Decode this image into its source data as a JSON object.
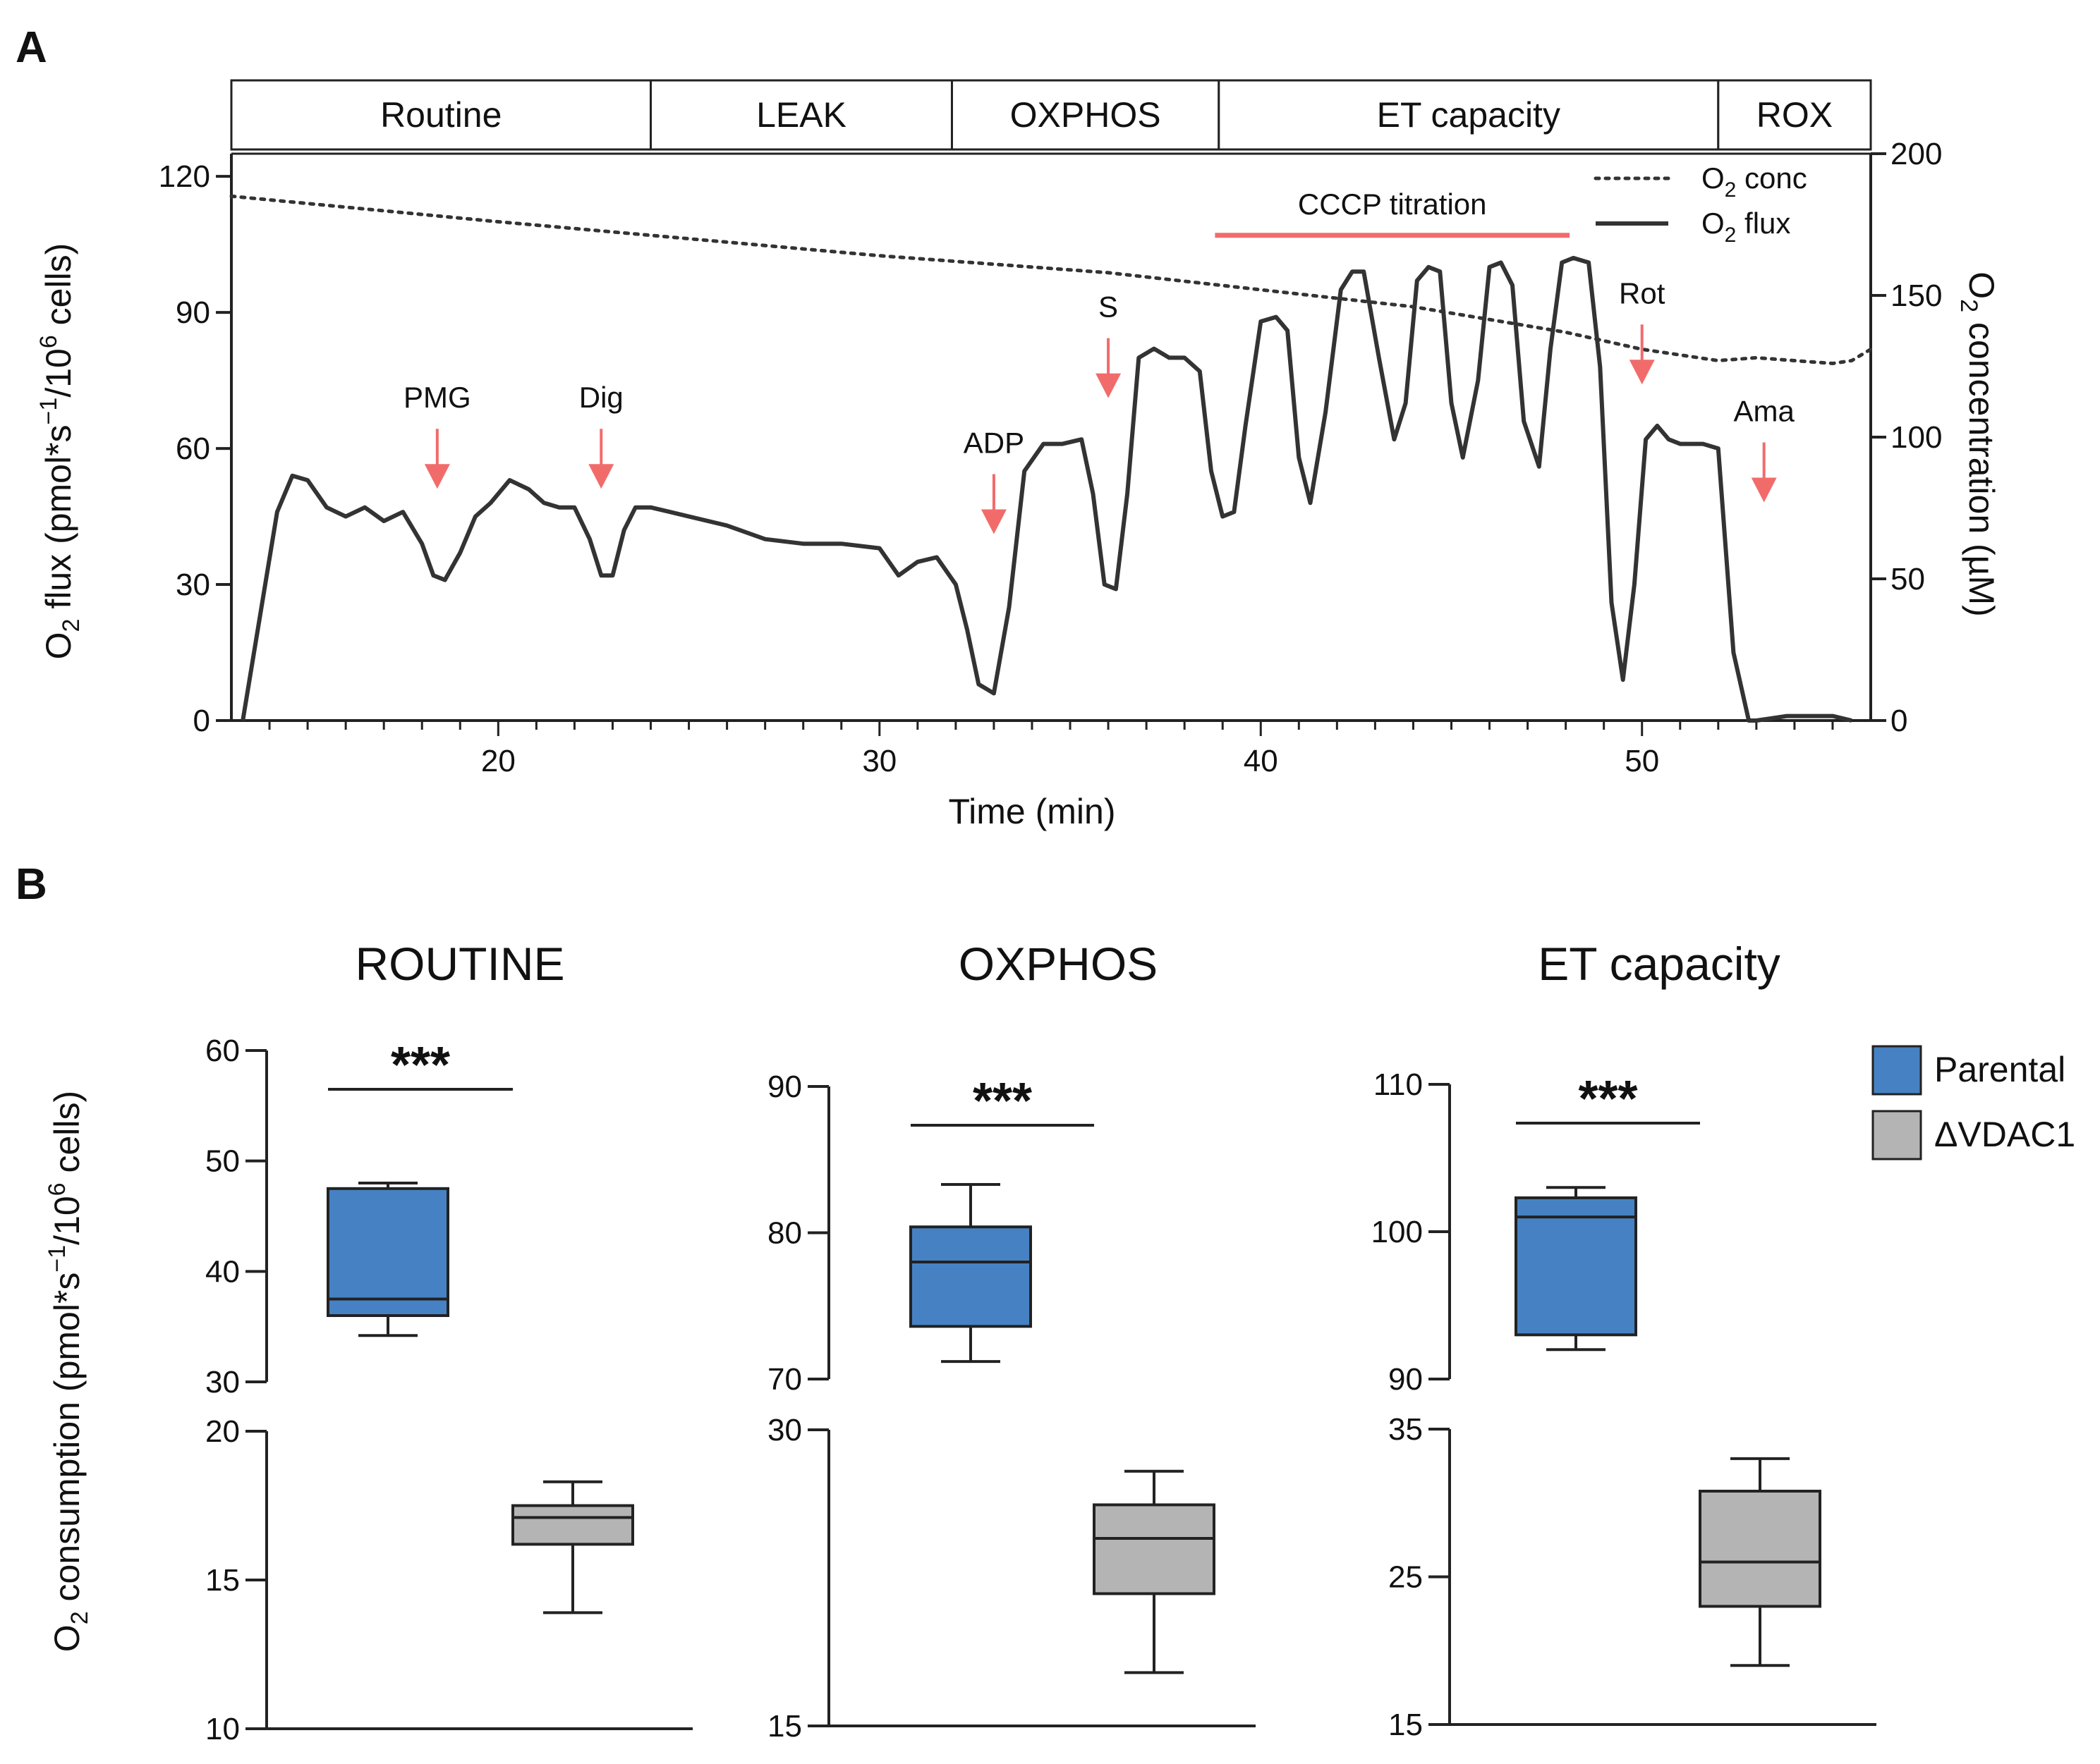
{
  "panel_a_label": "A",
  "panel_b_label": "B",
  "chart_data": [
    {
      "type": "line",
      "phases": [
        "Routine",
        "LEAK",
        "OXPHOS",
        "ET capacity",
        "ROX"
      ],
      "phase_bounds_min": [
        13,
        24,
        31.9,
        38.9,
        52,
        56
      ],
      "xlabel": "Time (min)",
      "xlim": [
        13,
        56
      ],
      "xticks": [
        20,
        30,
        40,
        50
      ],
      "ylabel": "O2 flux (pmol*s−1/10⁶ cells)",
      "ylabel_parts": {
        "o": "O",
        "sub": "2",
        "mid": " flux (pmol*s",
        "sup1": "−1",
        "mid2": "/10",
        "sup2": "6",
        "end": " cells)"
      },
      "ylim": [
        0,
        125
      ],
      "yticks": [
        0,
        30,
        60,
        90,
        120
      ],
      "y2label": "O2 concentration (µM)",
      "y2label_parts": {
        "o": "O",
        "sub": "2",
        "end": " concentration (µM)"
      },
      "y2lim": [
        0,
        200
      ],
      "y2ticks": [
        0,
        50,
        100,
        150,
        200
      ],
      "legend": [
        {
          "o": "O",
          "sub": "2",
          "rest": " conc",
          "style": "dotted"
        },
        {
          "o": "O",
          "sub": "2",
          "rest": " flux",
          "style": "solid"
        }
      ],
      "titration_label": "CCCP titration",
      "titration_range_min": [
        38.8,
        48.1
      ],
      "titration_y": 107,
      "injections": [
        {
          "label": "PMG",
          "t": 18.4,
          "y": 55
        },
        {
          "label": "Dig",
          "t": 22.7,
          "y": 55
        },
        {
          "label": "ADP",
          "t": 33.0,
          "y": 45
        },
        {
          "label": "S",
          "t": 36.0,
          "y": 75
        },
        {
          "label": "Rot",
          "t": 50.0,
          "y": 78
        },
        {
          "label": "Ama",
          "t": 53.2,
          "y": 52
        }
      ],
      "series": [
        {
          "name": "O2 flux",
          "x": [
            13.3,
            14.2,
            14.6,
            15.0,
            15.5,
            16.0,
            16.5,
            17.0,
            17.5,
            18.0,
            18.3,
            18.6,
            19.0,
            19.4,
            19.8,
            20.3,
            20.8,
            21.2,
            21.6,
            22.0,
            22.4,
            22.7,
            23.0,
            23.3,
            23.6,
            24.0,
            24.5,
            25.0,
            26.0,
            27.0,
            28.0,
            29.0,
            30.0,
            30.5,
            31.0,
            31.5,
            32.0,
            32.3,
            32.6,
            33.0,
            33.4,
            33.8,
            34.3,
            34.8,
            35.3,
            35.6,
            35.9,
            36.2,
            36.5,
            36.8,
            37.2,
            37.6,
            38.0,
            38.4,
            38.7,
            39.0,
            39.3,
            39.6,
            40.0,
            40.4,
            40.7,
            41.0,
            41.3,
            41.7,
            42.1,
            42.4,
            42.7,
            43.1,
            43.5,
            43.8,
            44.1,
            44.4,
            44.7,
            45.0,
            45.3,
            45.7,
            46.0,
            46.3,
            46.6,
            46.9,
            47.3,
            47.6,
            47.9,
            48.2,
            48.6,
            48.9,
            49.2,
            49.5,
            49.8,
            50.1,
            50.4,
            50.7,
            51.0,
            51.3,
            51.6,
            52.0,
            52.4,
            52.8,
            53.0,
            53.8,
            54.5,
            55.0,
            55.5
          ],
          "y": [
            0,
            46,
            54,
            53,
            47,
            45,
            47,
            44,
            46,
            39,
            32,
            31,
            37,
            45,
            48,
            53,
            51,
            48,
            47,
            47,
            40,
            32,
            32,
            42,
            47,
            47,
            46,
            45,
            43,
            40,
            39,
            39,
            38,
            32,
            35,
            36,
            30,
            20,
            8,
            6,
            25,
            55,
            61,
            61,
            62,
            50,
            30,
            29,
            50,
            80,
            82,
            80,
            80,
            77,
            55,
            45,
            46,
            65,
            88,
            89,
            86,
            58,
            48,
            68,
            95,
            99,
            99,
            80,
            62,
            70,
            97,
            100,
            99,
            70,
            58,
            75,
            100,
            101,
            96,
            66,
            56,
            82,
            101,
            102,
            101,
            78,
            26,
            9,
            30,
            62,
            65,
            62,
            61,
            61,
            61,
            60,
            15,
            0,
            0,
            1,
            1,
            1,
            0
          ]
        },
        {
          "name": "O2 conc",
          "axis": "right",
          "x": [
            13.0,
            20.0,
            30.0,
            36.0,
            40.0,
            44.0,
            48.0,
            50.0,
            52.0,
            53.0,
            54.0,
            55.0,
            55.5,
            56.0
          ],
          "y": [
            185,
            176,
            164,
            158,
            152,
            146,
            137,
            131,
            127,
            128,
            127,
            126,
            127,
            131
          ]
        }
      ]
    },
    {
      "type": "box",
      "title": "ROUTINE",
      "significance": "***",
      "top_ticks": [
        30,
        40,
        50,
        60
      ],
      "top_range": [
        30,
        60
      ],
      "bottom_ticks": [
        10,
        15,
        20
      ],
      "bottom_range": [
        10,
        20
      ],
      "groups": [
        {
          "name": "Parental",
          "whisker_low": 34.2,
          "q1": 36.0,
          "median": 37.5,
          "q3": 47.5,
          "whisker_high": 48.0
        },
        {
          "name": "ΔVDAC1",
          "whisker_low": 13.9,
          "q1": 16.2,
          "median": 17.1,
          "q3": 17.5,
          "whisker_high": 18.3
        }
      ]
    },
    {
      "type": "box",
      "title": "OXPHOS",
      "significance": "***",
      "top_ticks": [
        70,
        80,
        90
      ],
      "top_range": [
        70,
        90
      ],
      "bottom_ticks": [
        15,
        30
      ],
      "bottom_range": [
        15,
        30
      ],
      "groups": [
        {
          "name": "Parental",
          "whisker_low": 71.2,
          "q1": 73.6,
          "median": 78.0,
          "q3": 80.4,
          "whisker_high": 83.3
        },
        {
          "name": "ΔVDAC1",
          "whisker_low": 17.7,
          "q1": 21.7,
          "median": 24.5,
          "q3": 26.2,
          "whisker_high": 27.9
        }
      ]
    },
    {
      "type": "box",
      "title": "ET capacity",
      "significance": "***",
      "top_ticks": [
        90,
        100,
        110
      ],
      "top_range": [
        90,
        110
      ],
      "bottom_ticks": [
        15,
        25,
        35
      ],
      "bottom_range": [
        15,
        35
      ],
      "groups": [
        {
          "name": "Parental",
          "whisker_low": 92.0,
          "q1": 93.0,
          "median": 101.0,
          "q3": 102.3,
          "whisker_high": 103.0
        },
        {
          "name": "ΔVDAC1",
          "whisker_low": 19.0,
          "q1": 23.0,
          "median": 26.0,
          "q3": 30.8,
          "whisker_high": 33.0
        }
      ]
    }
  ],
  "panel_b_ylabel_parts": {
    "o": "O",
    "sub": "2",
    "mid": " consumption (pmol*s",
    "sup1": "−1",
    "mid2": "/10",
    "sup2": "6",
    "end": " cells)"
  },
  "legend_b": [
    {
      "label": "Parental",
      "color": "#4682c3"
    },
    {
      "label": "ΔVDAC1",
      "color": "#b4b4b4"
    }
  ],
  "colors": {
    "line": "#333333",
    "arrow": "#f26b6b",
    "parental": "#4682c3",
    "vdac": "#b4b4b4"
  }
}
